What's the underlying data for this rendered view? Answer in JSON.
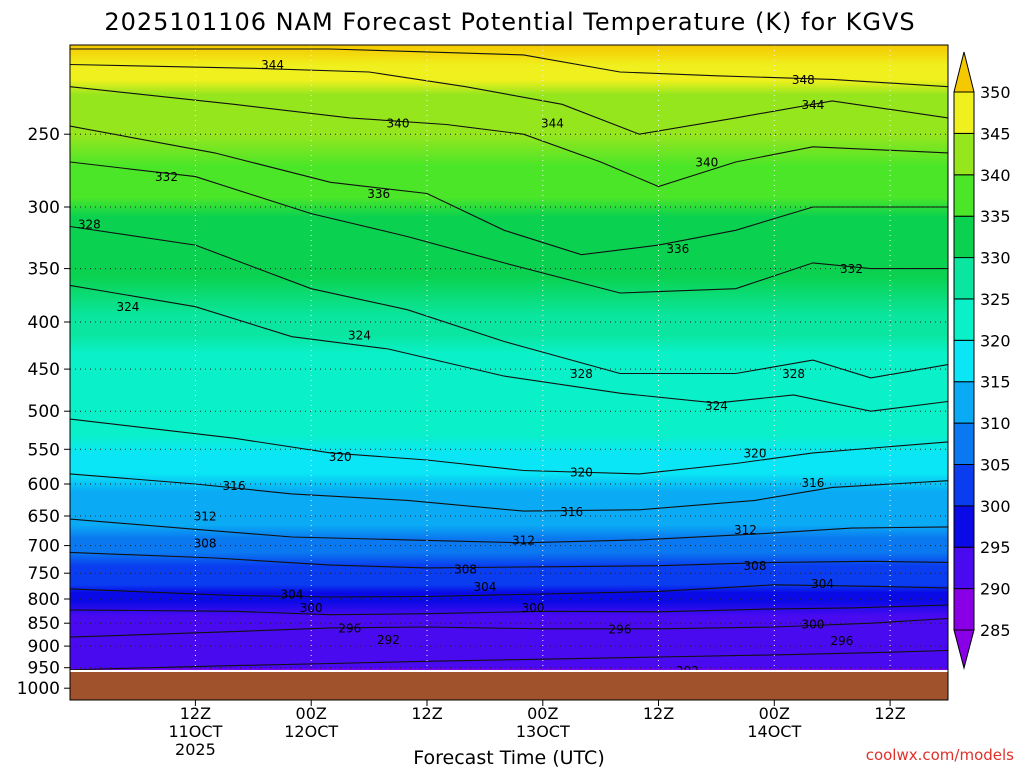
{
  "chart_data": {
    "type": "heatmap",
    "title": "2025101106 NAM Forecast Potential Temperature (K) for KGVS",
    "xlabel": "Forecast Time (UTC)",
    "ylabel": "",
    "credit": "coolwx.com/models",
    "y_axis": {
      "scale": "pressure (hPa), log",
      "range": [
        200,
        1030
      ],
      "inverted": true,
      "ticks": [
        250,
        300,
        350,
        400,
        450,
        500,
        550,
        600,
        650,
        700,
        750,
        800,
        850,
        900,
        950,
        1000
      ]
    },
    "x_axis": {
      "range_hours": [
        -7,
        84
      ],
      "ticks": [
        {
          "hour": 6,
          "line1": "12Z",
          "line2": "11OCT",
          "line3": "2025"
        },
        {
          "hour": 18,
          "line1": "00Z",
          "line2": "12OCT",
          "line3": ""
        },
        {
          "hour": 30,
          "line1": "12Z",
          "line2": "",
          "line3": ""
        },
        {
          "hour": 42,
          "line1": "00Z",
          "line2": "13OCT",
          "line3": ""
        },
        {
          "hour": 54,
          "line1": "12Z",
          "line2": "",
          "line3": ""
        },
        {
          "hour": 66,
          "line1": "00Z",
          "line2": "14OCT",
          "line3": ""
        },
        {
          "hour": 78,
          "line1": "12Z",
          "line2": "",
          "line3": ""
        }
      ]
    },
    "colorbar": {
      "levels": [
        285,
        290,
        295,
        300,
        305,
        310,
        315,
        320,
        325,
        330,
        335,
        340,
        345,
        350
      ],
      "colors": [
        "#8a00e6",
        "#4a0af0",
        "#0a0ae6",
        "#0a3cf0",
        "#0a78f0",
        "#0aaaf5",
        "#0ae6f5",
        "#0af0c8",
        "#0ae6a0",
        "#0ad250",
        "#4be628",
        "#96e61e",
        "#f0f01e",
        "#fac814"
      ],
      "under_color": "#8a00e6",
      "over_color": "#f5c800"
    },
    "ground_color": "#a0522d",
    "isentropes": [
      {
        "theta": 292,
        "points": [
          [
            -7,
            955
          ],
          [
            10,
            945
          ],
          [
            20,
            940
          ],
          [
            30,
            935
          ],
          [
            42,
            930
          ],
          [
            54,
            925
          ],
          [
            66,
            920
          ],
          [
            76,
            915
          ],
          [
            84,
            910
          ]
        ]
      },
      {
        "theta": 296,
        "points": [
          [
            -7,
            880
          ],
          [
            10,
            868
          ],
          [
            20,
            860
          ],
          [
            30,
            858
          ],
          [
            42,
            862
          ],
          [
            54,
            862
          ],
          [
            66,
            858
          ],
          [
            76,
            850
          ],
          [
            84,
            840
          ]
        ]
      },
      {
        "theta": 300,
        "points": [
          [
            -7,
            822
          ],
          [
            10,
            825
          ],
          [
            20,
            832
          ],
          [
            30,
            830
          ],
          [
            42,
            825
          ],
          [
            54,
            826
          ],
          [
            66,
            820
          ],
          [
            74,
            818
          ],
          [
            84,
            812
          ]
        ]
      },
      {
        "theta": 304,
        "points": [
          [
            -7,
            780
          ],
          [
            10,
            793
          ],
          [
            20,
            796
          ],
          [
            30,
            795
          ],
          [
            42,
            790
          ],
          [
            54,
            785
          ],
          [
            66,
            772
          ],
          [
            76,
            775
          ],
          [
            84,
            778
          ]
        ]
      },
      {
        "theta": 308,
        "points": [
          [
            -7,
            712
          ],
          [
            8,
            722
          ],
          [
            20,
            735
          ],
          [
            30,
            740
          ],
          [
            42,
            738
          ],
          [
            54,
            736
          ],
          [
            66,
            730
          ],
          [
            76,
            728
          ],
          [
            84,
            730
          ]
        ]
      },
      {
        "theta": 312,
        "points": [
          [
            -7,
            655
          ],
          [
            6,
            672
          ],
          [
            16,
            685
          ],
          [
            28,
            690
          ],
          [
            40,
            695
          ],
          [
            52,
            690
          ],
          [
            64,
            680
          ],
          [
            74,
            670
          ],
          [
            84,
            668
          ]
        ]
      },
      {
        "theta": 316,
        "points": [
          [
            -7,
            585
          ],
          [
            6,
            600
          ],
          [
            16,
            615
          ],
          [
            28,
            625
          ],
          [
            40,
            642
          ],
          [
            52,
            640
          ],
          [
            64,
            625
          ],
          [
            72,
            605
          ],
          [
            84,
            595
          ]
        ]
      },
      {
        "theta": 320,
        "points": [
          [
            -7,
            510
          ],
          [
            10,
            535
          ],
          [
            20,
            555
          ],
          [
            30,
            565
          ],
          [
            40,
            580
          ],
          [
            52,
            585
          ],
          [
            62,
            570
          ],
          [
            70,
            555
          ],
          [
            84,
            540
          ]
        ]
      },
      {
        "theta": 324,
        "points": [
          [
            -7,
            365
          ],
          [
            6,
            385
          ],
          [
            16,
            415
          ],
          [
            26,
            428
          ],
          [
            38,
            458
          ],
          [
            50,
            478
          ],
          [
            60,
            490
          ],
          [
            68,
            480
          ],
          [
            76,
            500
          ],
          [
            84,
            488
          ]
        ]
      },
      {
        "theta": 328,
        "points": [
          [
            -7,
            315
          ],
          [
            6,
            330
          ],
          [
            18,
            368
          ],
          [
            28,
            388
          ],
          [
            38,
            420
          ],
          [
            50,
            455
          ],
          [
            62,
            455
          ],
          [
            70,
            440
          ],
          [
            76,
            460
          ],
          [
            84,
            445
          ]
        ]
      },
      {
        "theta": 332,
        "points": [
          [
            -7,
            268
          ],
          [
            6,
            278
          ],
          [
            18,
            305
          ],
          [
            28,
            323
          ],
          [
            38,
            345
          ],
          [
            50,
            372
          ],
          [
            62,
            368
          ],
          [
            70,
            345
          ],
          [
            76,
            350
          ],
          [
            84,
            350
          ]
        ]
      },
      {
        "theta": 336,
        "points": [
          [
            -7,
            245
          ],
          [
            8,
            262
          ],
          [
            20,
            282
          ],
          [
            30,
            290
          ],
          [
            38,
            318
          ],
          [
            46,
            338
          ],
          [
            54,
            330
          ],
          [
            62,
            318
          ],
          [
            70,
            300
          ],
          [
            84,
            300
          ]
        ]
      },
      {
        "theta": 340,
        "points": [
          [
            -7,
            222
          ],
          [
            10,
            232
          ],
          [
            22,
            240
          ],
          [
            32,
            244
          ],
          [
            40,
            250
          ],
          [
            48,
            268
          ],
          [
            54,
            285
          ],
          [
            62,
            268
          ],
          [
            70,
            258
          ],
          [
            84,
            262
          ]
        ]
      },
      {
        "theta": 344,
        "points": [
          [
            -7,
            210
          ],
          [
            12,
            212
          ],
          [
            24,
            214
          ],
          [
            34,
            222
          ],
          [
            44,
            232
          ],
          [
            52,
            250
          ],
          [
            62,
            240
          ],
          [
            72,
            230
          ],
          [
            84,
            240
          ]
        ]
      },
      {
        "theta": 348,
        "points": [
          [
            -7,
            202
          ],
          [
            20,
            202
          ],
          [
            40,
            205
          ],
          [
            50,
            214
          ],
          [
            60,
            216
          ],
          [
            72,
            218
          ],
          [
            84,
            222
          ]
        ]
      }
    ],
    "contour_labels": [
      {
        "text": "344",
        "hour": 14,
        "pres": 210
      },
      {
        "text": "348",
        "hour": 69,
        "pres": 218
      },
      {
        "text": "344",
        "hour": 70,
        "pres": 232
      },
      {
        "text": "340",
        "hour": 27,
        "pres": 243
      },
      {
        "text": "344",
        "hour": 43,
        "pres": 243
      },
      {
        "text": "340",
        "hour": 59,
        "pres": 268
      },
      {
        "text": "332",
        "hour": 3,
        "pres": 278
      },
      {
        "text": "336",
        "hour": 25,
        "pres": 290
      },
      {
        "text": "336",
        "hour": 56,
        "pres": 333
      },
      {
        "text": "328",
        "hour": -5,
        "pres": 313
      },
      {
        "text": "332",
        "hour": 74,
        "pres": 350
      },
      {
        "text": "324",
        "hour": -1,
        "pres": 385
      },
      {
        "text": "324",
        "hour": 23,
        "pres": 413
      },
      {
        "text": "328",
        "hour": 46,
        "pres": 455
      },
      {
        "text": "328",
        "hour": 68,
        "pres": 455
      },
      {
        "text": "324",
        "hour": 60,
        "pres": 493
      },
      {
        "text": "320",
        "hour": 21,
        "pres": 560
      },
      {
        "text": "320",
        "hour": 64,
        "pres": 555
      },
      {
        "text": "320",
        "hour": 46,
        "pres": 582
      },
      {
        "text": "316",
        "hour": 10,
        "pres": 602
      },
      {
        "text": "316",
        "hour": 70,
        "pres": 598
      },
      {
        "text": "316",
        "hour": 45,
        "pres": 643
      },
      {
        "text": "312",
        "hour": 7,
        "pres": 650
      },
      {
        "text": "312",
        "hour": 40,
        "pres": 690
      },
      {
        "text": "312",
        "hour": 63,
        "pres": 672
      },
      {
        "text": "308",
        "hour": 7,
        "pres": 695
      },
      {
        "text": "308",
        "hour": 34,
        "pres": 742
      },
      {
        "text": "308",
        "hour": 64,
        "pres": 736
      },
      {
        "text": "304",
        "hour": 16,
        "pres": 790
      },
      {
        "text": "304",
        "hour": 36,
        "pres": 775
      },
      {
        "text": "304",
        "hour": 71,
        "pres": 770
      },
      {
        "text": "300",
        "hour": 18,
        "pres": 817
      },
      {
        "text": "300",
        "hour": 41,
        "pres": 817
      },
      {
        "text": "300",
        "hour": 70,
        "pres": 852
      },
      {
        "text": "296",
        "hour": 22,
        "pres": 860
      },
      {
        "text": "296",
        "hour": 50,
        "pres": 862
      },
      {
        "text": "296",
        "hour": 73,
        "pres": 888
      },
      {
        "text": "292",
        "hour": 26,
        "pres": 885
      },
      {
        "text": "292",
        "hour": 57,
        "pres": 957
      }
    ]
  }
}
